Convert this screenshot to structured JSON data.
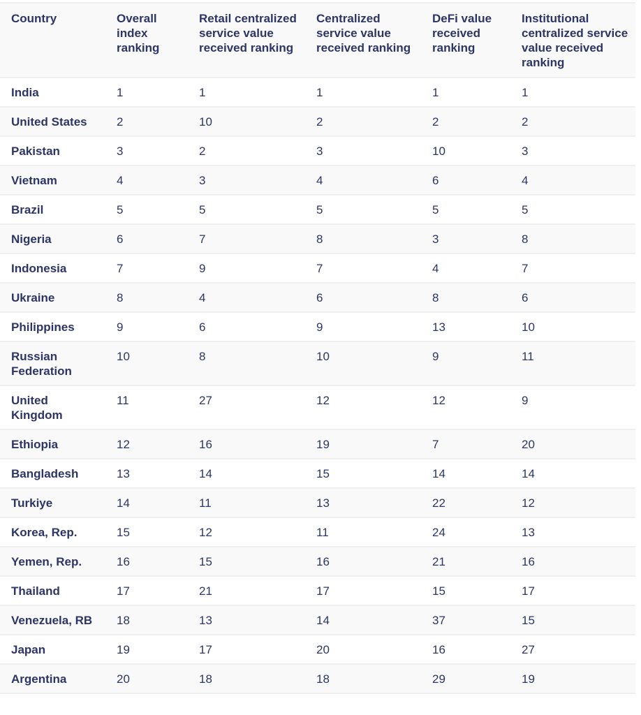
{
  "table": {
    "headers": [
      "Country",
      "Overall index ranking",
      "Retail centralized service value received ranking",
      "Centralized service value received ranking",
      "DeFi value received ranking",
      "Institutional centralized service value received ranking"
    ],
    "rows": [
      [
        "India",
        "1",
        "1",
        "1",
        "1",
        "1"
      ],
      [
        "United States",
        "2",
        "10",
        "2",
        "2",
        "2"
      ],
      [
        "Pakistan",
        "3",
        "2",
        "3",
        "10",
        "3"
      ],
      [
        "Vietnam",
        "4",
        "3",
        "4",
        "6",
        "4"
      ],
      [
        "Brazil",
        "5",
        "5",
        "5",
        "5",
        "5"
      ],
      [
        "Nigeria",
        "6",
        "7",
        "8",
        "3",
        "8"
      ],
      [
        "Indonesia",
        "7",
        "9",
        "7",
        "4",
        "7"
      ],
      [
        "Ukraine",
        "8",
        "4",
        "6",
        "8",
        "6"
      ],
      [
        "Philippines",
        "9",
        "6",
        "9",
        "13",
        "10"
      ],
      [
        "Russian Federation",
        "10",
        "8",
        "10",
        "9",
        "11"
      ],
      [
        "United Kingdom",
        "11",
        "27",
        "12",
        "12",
        "9"
      ],
      [
        "Ethiopia",
        "12",
        "16",
        "19",
        "7",
        "20"
      ],
      [
        "Bangladesh",
        "13",
        "14",
        "15",
        "14",
        "14"
      ],
      [
        "Turkiye",
        "14",
        "11",
        "13",
        "22",
        "12"
      ],
      [
        "Korea, Rep.",
        "15",
        "12",
        "11",
        "24",
        "13"
      ],
      [
        "Yemen, Rep.",
        "16",
        "15",
        "16",
        "21",
        "16"
      ],
      [
        "Thailand",
        "17",
        "21",
        "17",
        "15",
        "17"
      ],
      [
        "Venezuela, RB",
        "18",
        "13",
        "14",
        "37",
        "15"
      ],
      [
        "Japan",
        "19",
        "17",
        "20",
        "16",
        "27"
      ],
      [
        "Argentina",
        "20",
        "18",
        "18",
        "29",
        "19"
      ]
    ]
  },
  "colors": {
    "text": "#2d3566",
    "stripe": "#f9f9f9",
    "border": "#efefef"
  }
}
